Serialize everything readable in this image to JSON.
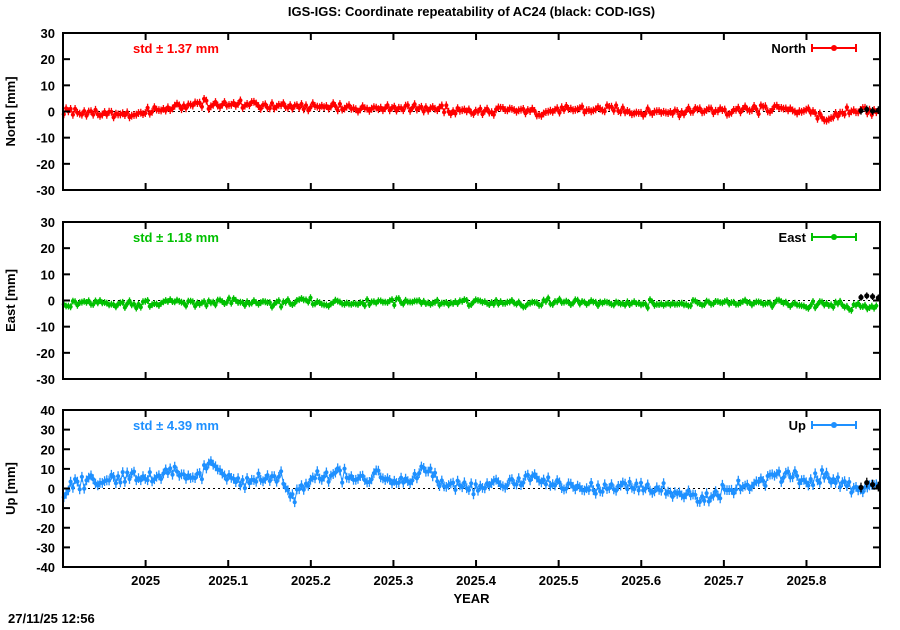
{
  "title": "IGS-IGS: Coordinate repeatability of AC24 (black: COD-IGS)",
  "timestamp": "27/11/25 12:56",
  "chart_data": {
    "type": "line",
    "xlabel": "YEAR",
    "x_axis": {
      "min": 2024.9,
      "max": 2025.889,
      "ticks": [
        2025,
        2025.1,
        2025.2,
        2025.3,
        2025.4,
        2025.5,
        2025.6,
        2025.7,
        2025.8
      ],
      "tick_labels": [
        "2025",
        "2025.1",
        "2025.2",
        "2025.3",
        "2025.4",
        "2025.5",
        "2025.6",
        "2025.7",
        "2025.8"
      ],
      "grid": false
    },
    "reference_color": "#000000",
    "reference_series_note": "black: COD-IGS",
    "zero_line": {
      "value": 0,
      "style": "dotted"
    },
    "points_per_year": 365,
    "panels": [
      {
        "name": "North",
        "ylabel": "North [mm]",
        "std_label": "std ± 1.37 mm",
        "std_mm": 1.37,
        "legend_label": "North",
        "color": "#ff0000",
        "ylim": [
          -30,
          30
        ],
        "yticks": [
          30,
          20,
          10,
          0,
          -10,
          -20,
          -30
        ],
        "noise_mm": 1.0,
        "errorbar_mm": 1.5,
        "trend": [
          [
            2024.9,
            0.5
          ],
          [
            2024.925,
            -0.5
          ],
          [
            2024.95,
            -1.0
          ],
          [
            2024.975,
            -1.5
          ],
          [
            2025.0,
            0.0
          ],
          [
            2025.025,
            0.5
          ],
          [
            2025.05,
            2.0
          ],
          [
            2025.06,
            3.5
          ],
          [
            2025.08,
            2.5
          ],
          [
            2025.1,
            3.0
          ],
          [
            2025.12,
            2.5
          ],
          [
            2025.15,
            2.0
          ],
          [
            2025.18,
            1.5
          ],
          [
            2025.2,
            1.5
          ],
          [
            2025.25,
            1.5
          ],
          [
            2025.3,
            1.0
          ],
          [
            2025.33,
            2.0
          ],
          [
            2025.36,
            0.5
          ],
          [
            2025.4,
            0.0
          ],
          [
            2025.44,
            0.5
          ],
          [
            2025.48,
            0.0
          ],
          [
            2025.52,
            1.0
          ],
          [
            2025.56,
            0.5
          ],
          [
            2025.6,
            0.0
          ],
          [
            2025.63,
            -0.5
          ],
          [
            2025.66,
            0.5
          ],
          [
            2025.7,
            0.0
          ],
          [
            2025.73,
            0.5
          ],
          [
            2025.76,
            1.0
          ],
          [
            2025.79,
            0.5
          ],
          [
            2025.81,
            -1.0
          ],
          [
            2025.825,
            -3.5
          ],
          [
            2025.84,
            -1.0
          ],
          [
            2025.855,
            0.5
          ],
          [
            2025.87,
            0.0
          ],
          [
            2025.889,
            0.5
          ]
        ],
        "black_points": [
          [
            2025.866,
            0.3
          ],
          [
            2025.873,
            0.8
          ],
          [
            2025.88,
            0.2
          ],
          [
            2025.887,
            0.5
          ]
        ]
      },
      {
        "name": "East",
        "ylabel": "East [mm]",
        "std_label": "std ± 1.18 mm",
        "std_mm": 1.18,
        "legend_label": "East",
        "color": "#00c000",
        "ylim": [
          -30,
          30
        ],
        "yticks": [
          30,
          20,
          10,
          0,
          -10,
          -20,
          -30
        ],
        "noise_mm": 0.9,
        "errorbar_mm": 1.3,
        "trend": [
          [
            2024.9,
            -1.5
          ],
          [
            2024.95,
            -1.0
          ],
          [
            2025.0,
            -1.5
          ],
          [
            2025.03,
            -0.5
          ],
          [
            2025.06,
            -1.5
          ],
          [
            2025.1,
            -0.5
          ],
          [
            2025.15,
            -1.0
          ],
          [
            2025.2,
            -0.5
          ],
          [
            2025.25,
            -1.0
          ],
          [
            2025.3,
            -0.5
          ],
          [
            2025.35,
            -1.0
          ],
          [
            2025.4,
            -0.5
          ],
          [
            2025.45,
            -1.0
          ],
          [
            2025.5,
            -0.5
          ],
          [
            2025.55,
            -1.0
          ],
          [
            2025.6,
            -1.0
          ],
          [
            2025.65,
            -1.5
          ],
          [
            2025.7,
            -1.0
          ],
          [
            2025.75,
            -1.0
          ],
          [
            2025.8,
            -1.5
          ],
          [
            2025.85,
            -2.0
          ],
          [
            2025.889,
            -2.0
          ]
        ],
        "black_points": [
          [
            2025.866,
            1.2
          ],
          [
            2025.873,
            1.8
          ],
          [
            2025.88,
            1.5
          ],
          [
            2025.887,
            1.0
          ]
        ]
      },
      {
        "name": "Up",
        "ylabel": "Up [mm]",
        "std_label": "std ± 4.39 mm",
        "std_mm": 4.39,
        "legend_label": "Up",
        "color": "#1e90ff",
        "ylim": [
          -40,
          40
        ],
        "yticks": [
          40,
          30,
          20,
          10,
          0,
          -10,
          -20,
          -30,
          -40
        ],
        "noise_mm": 2.2,
        "errorbar_mm": 2.5,
        "trend": [
          [
            2024.9,
            -2.0
          ],
          [
            2024.92,
            3.0
          ],
          [
            2024.96,
            6.0
          ],
          [
            2025.0,
            5.0
          ],
          [
            2025.03,
            10.0
          ],
          [
            2025.05,
            4.0
          ],
          [
            2025.08,
            12.0
          ],
          [
            2025.1,
            5.0
          ],
          [
            2025.13,
            3.0
          ],
          [
            2025.16,
            7.0
          ],
          [
            2025.18,
            -4.0
          ],
          [
            2025.2,
            5.0
          ],
          [
            2025.23,
            8.0
          ],
          [
            2025.26,
            3.0
          ],
          [
            2025.28,
            6.0
          ],
          [
            2025.3,
            1.0
          ],
          [
            2025.32,
            4.0
          ],
          [
            2025.34,
            11.0
          ],
          [
            2025.36,
            2.0
          ],
          [
            2025.4,
            0.0
          ],
          [
            2025.44,
            3.0
          ],
          [
            2025.48,
            5.0
          ],
          [
            2025.5,
            2.0
          ],
          [
            2025.54,
            -1.0
          ],
          [
            2025.58,
            3.0
          ],
          [
            2025.6,
            1.0
          ],
          [
            2025.64,
            -2.0
          ],
          [
            2025.68,
            -4.0
          ],
          [
            2025.7,
            -1.0
          ],
          [
            2025.72,
            1.0
          ],
          [
            2025.74,
            3.0
          ],
          [
            2025.76,
            5.0
          ],
          [
            2025.78,
            6.0
          ],
          [
            2025.8,
            4.0
          ],
          [
            2025.82,
            6.0
          ],
          [
            2025.84,
            3.0
          ],
          [
            2025.86,
            -2.0
          ],
          [
            2025.88,
            2.0
          ],
          [
            2025.889,
            1.0
          ]
        ],
        "black_points": [
          [
            2025.866,
            0.5
          ],
          [
            2025.873,
            3.0
          ],
          [
            2025.88,
            2.0
          ],
          [
            2025.887,
            1.0
          ]
        ]
      }
    ]
  }
}
